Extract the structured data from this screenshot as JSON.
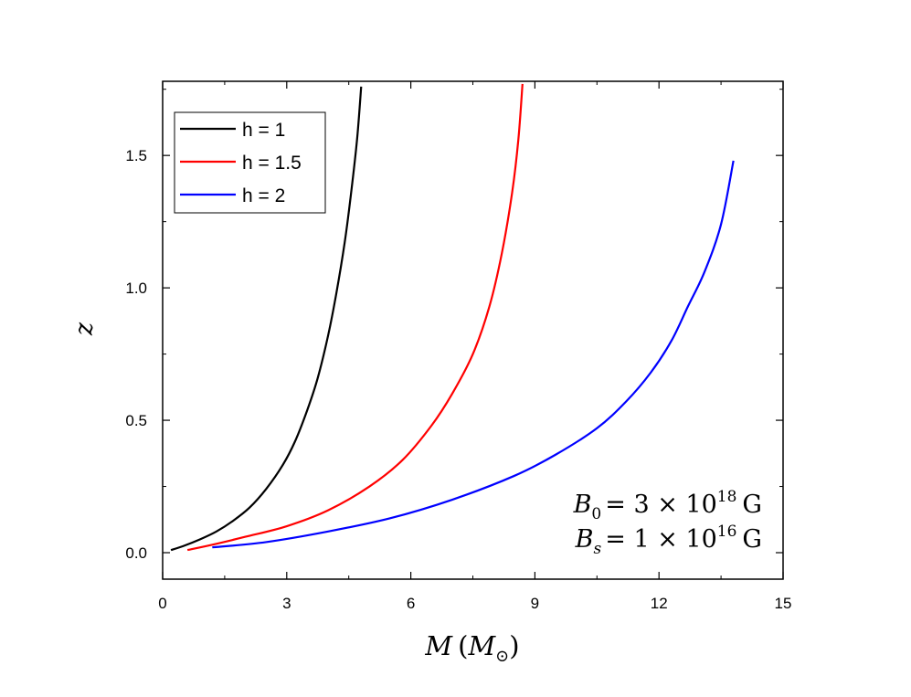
{
  "chart_data": {
    "type": "line",
    "xlabel": {
      "var": "M",
      "open": "(",
      "sym": "M",
      "sub": "⊙",
      "close": ")"
    },
    "ylabel": "z",
    "xlim": [
      0,
      15
    ],
    "ylim": [
      -0.1,
      1.78
    ],
    "xticks": [
      0,
      3,
      6,
      9,
      12,
      15
    ],
    "xtick_labels": [
      "0",
      "3",
      "6",
      "9",
      "12",
      "15"
    ],
    "yticks": [
      0.0,
      0.5,
      1.0,
      1.5
    ],
    "ytick_labels": [
      "0.0",
      "0.5",
      "1.0",
      "1.5"
    ],
    "grid": false,
    "legend_position": "top-left",
    "series": [
      {
        "name": "h = 1",
        "color": "#000000",
        "x": [
          0.2,
          0.5,
          0.9,
          1.3,
          1.7,
          2.1,
          2.5,
          2.9,
          3.2,
          3.5,
          3.75,
          4.0,
          4.2,
          4.4,
          4.55,
          4.7,
          4.8
        ],
        "y": [
          0.01,
          0.025,
          0.05,
          0.08,
          0.12,
          0.17,
          0.24,
          0.33,
          0.42,
          0.54,
          0.66,
          0.82,
          0.98,
          1.17,
          1.35,
          1.56,
          1.76
        ]
      },
      {
        "name": "h = 1.5",
        "color": "#ff0000",
        "x": [
          0.6,
          1.2,
          2.0,
          3.0,
          4.0,
          5.0,
          5.8,
          6.5,
          7.0,
          7.5,
          7.9,
          8.2,
          8.45,
          8.6,
          8.7
        ],
        "y": [
          0.01,
          0.03,
          0.06,
          0.1,
          0.16,
          0.25,
          0.35,
          0.48,
          0.6,
          0.75,
          0.93,
          1.13,
          1.36,
          1.56,
          1.77
        ]
      },
      {
        "name": "h = 2",
        "color": "#0000ff",
        "x": [
          1.2,
          2.5,
          4.0,
          5.5,
          7.0,
          8.5,
          9.5,
          10.5,
          11.2,
          11.8,
          12.3,
          12.7,
          13.1,
          13.5,
          13.8
        ],
        "y": [
          0.02,
          0.04,
          0.08,
          0.13,
          0.2,
          0.29,
          0.37,
          0.47,
          0.57,
          0.68,
          0.8,
          0.93,
          1.06,
          1.24,
          1.48
        ]
      }
    ],
    "annotations": [
      {
        "sym": "B",
        "sub": "0",
        "eq": "= 3 × 10",
        "exp": "18",
        "unit": "G"
      },
      {
        "sym": "B",
        "sub": "s",
        "eq": "= 1 × 10",
        "exp": "16",
        "unit": "G"
      }
    ]
  }
}
